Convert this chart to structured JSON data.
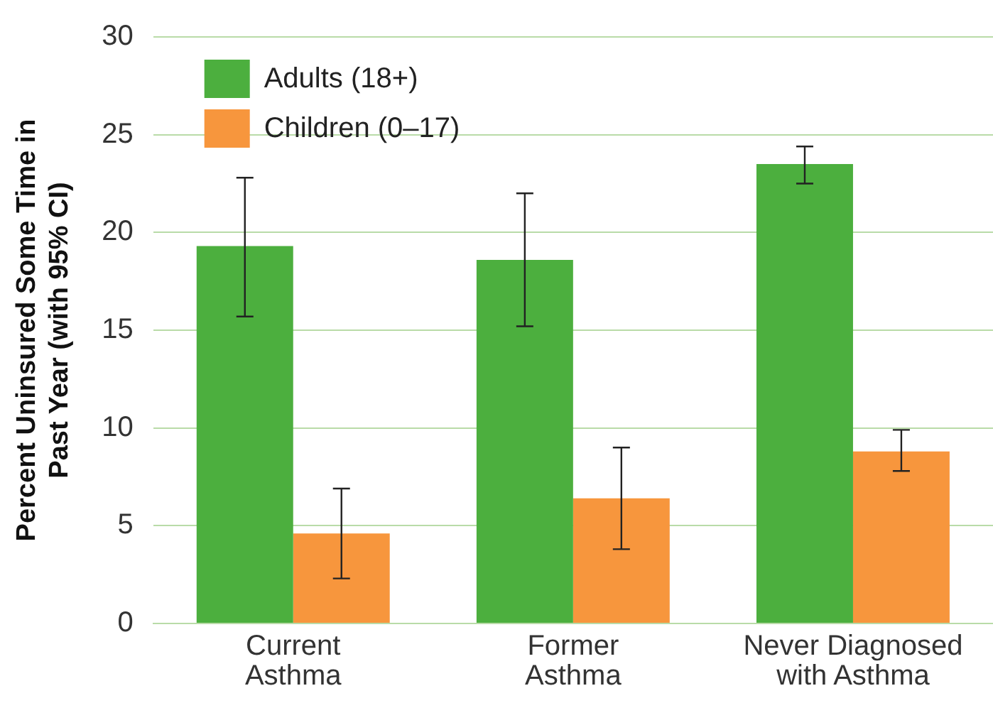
{
  "chart_data": {
    "type": "bar",
    "ylabel": "Percent Uninsured Some Time in Past Year (with 95% CI)",
    "categories": [
      "Current Asthma",
      "Former Asthma",
      "Never Diagnosed with Asthma"
    ],
    "series": [
      {
        "name": "Adults (18+)",
        "color": "#4caf3e",
        "values": [
          19.3,
          18.6,
          23.5
        ],
        "errors": [
          [
            15.7,
            22.8
          ],
          [
            15.2,
            22.0
          ],
          [
            22.5,
            24.4
          ]
        ]
      },
      {
        "name": "Children (0–17)",
        "color": "#f7963d",
        "values": [
          4.6,
          6.4,
          8.8
        ],
        "errors": [
          [
            2.3,
            6.9
          ],
          [
            3.8,
            9.0
          ],
          [
            7.8,
            9.9
          ]
        ]
      }
    ],
    "ylim": [
      0,
      30
    ],
    "yticks": [
      0,
      5,
      10,
      15,
      20,
      25,
      30
    ],
    "grid": "y",
    "legend": "top left"
  }
}
